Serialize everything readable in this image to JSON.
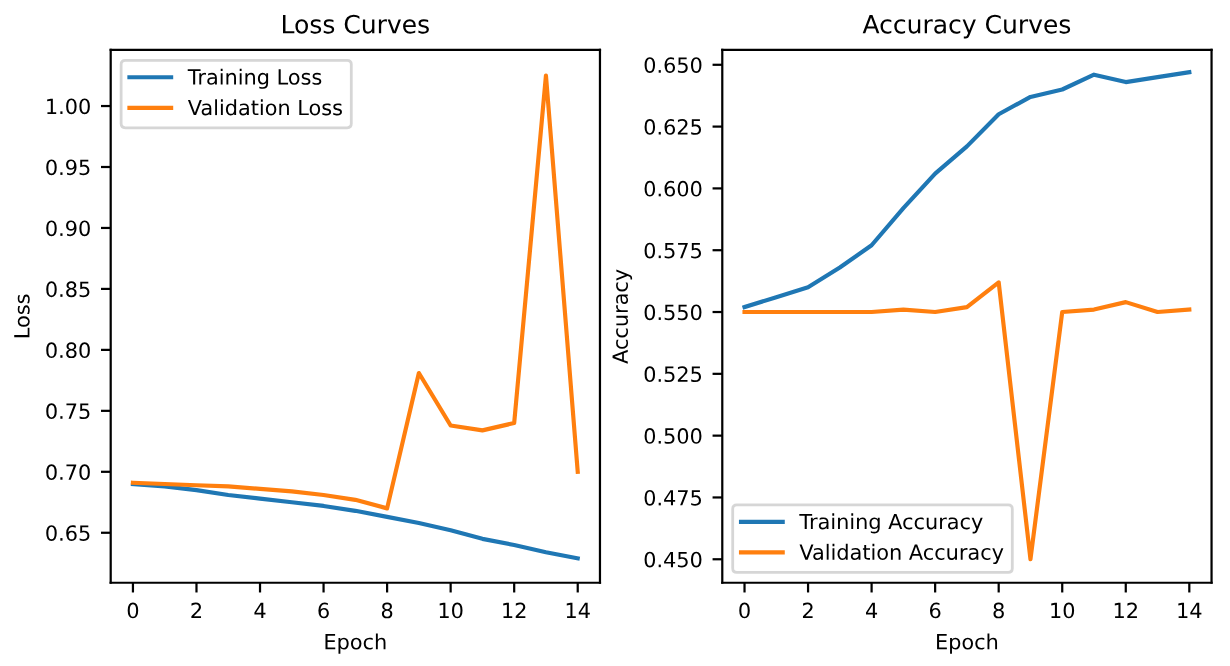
{
  "chart_data": [
    {
      "type": "line",
      "title": "Loss Curves",
      "xlabel": "Epoch",
      "ylabel": "Loss",
      "x": [
        0,
        1,
        2,
        3,
        4,
        5,
        6,
        7,
        8,
        9,
        10,
        11,
        12,
        13,
        14
      ],
      "series": [
        {
          "name": "Training Loss",
          "color": "#1f77b4",
          "values": [
            0.69,
            0.688,
            0.685,
            0.681,
            0.678,
            0.675,
            0.672,
            0.668,
            0.663,
            0.658,
            0.652,
            0.645,
            0.64,
            0.634,
            0.629
          ]
        },
        {
          "name": "Validation Loss",
          "color": "#ff7f0e",
          "values": [
            0.691,
            0.69,
            0.689,
            0.688,
            0.686,
            0.684,
            0.681,
            0.677,
            0.67,
            0.781,
            0.738,
            0.734,
            0.74,
            1.025,
            0.7
          ]
        }
      ],
      "xlim": [
        -0.7,
        14.7
      ],
      "ylim": [
        0.609,
        1.046
      ],
      "xticks": [
        0,
        2,
        4,
        6,
        8,
        10,
        12,
        14
      ],
      "yticks": [
        {
          "value": 0.65,
          "label": "0.65"
        },
        {
          "value": 0.7,
          "label": "0.70"
        },
        {
          "value": 0.75,
          "label": "0.75"
        },
        {
          "value": 0.8,
          "label": "0.80"
        },
        {
          "value": 0.85,
          "label": "0.85"
        },
        {
          "value": 0.9,
          "label": "0.90"
        },
        {
          "value": 0.95,
          "label": "0.95"
        },
        {
          "value": 1.0,
          "label": "1.00"
        }
      ],
      "legend": "top left",
      "grid": false,
      "marker": "none",
      "line_style": "solid"
    },
    {
      "type": "line",
      "title": "Accuracy Curves",
      "xlabel": "Epoch",
      "ylabel": "Accuracy",
      "x": [
        0,
        1,
        2,
        3,
        4,
        5,
        6,
        7,
        8,
        9,
        10,
        11,
        12,
        13,
        14
      ],
      "series": [
        {
          "name": "Training Accuracy",
          "color": "#1f77b4",
          "values": [
            0.552,
            0.556,
            0.56,
            0.568,
            0.577,
            0.592,
            0.606,
            0.617,
            0.63,
            0.637,
            0.64,
            0.646,
            0.643,
            0.645,
            0.647
          ]
        },
        {
          "name": "Validation Accuracy",
          "color": "#ff7f0e",
          "values": [
            0.55,
            0.55,
            0.55,
            0.55,
            0.55,
            0.551,
            0.55,
            0.552,
            0.562,
            0.45,
            0.55,
            0.551,
            0.554,
            0.55,
            0.551
          ]
        }
      ],
      "xlim": [
        -0.7,
        14.7
      ],
      "ylim": [
        0.4405,
        0.656
      ],
      "xticks": [
        0,
        2,
        4,
        6,
        8,
        10,
        12,
        14
      ],
      "yticks": [
        {
          "value": 0.45,
          "label": "0.450"
        },
        {
          "value": 0.475,
          "label": "0.475"
        },
        {
          "value": 0.5,
          "label": "0.500"
        },
        {
          "value": 0.525,
          "label": "0.525"
        },
        {
          "value": 0.55,
          "label": "0.550"
        },
        {
          "value": 0.575,
          "label": "0.575"
        },
        {
          "value": 0.6,
          "label": "0.600"
        },
        {
          "value": 0.625,
          "label": "0.625"
        },
        {
          "value": 0.65,
          "label": "0.650"
        }
      ],
      "legend": "bottom left",
      "grid": false,
      "marker": "none",
      "line_style": "solid"
    }
  ]
}
